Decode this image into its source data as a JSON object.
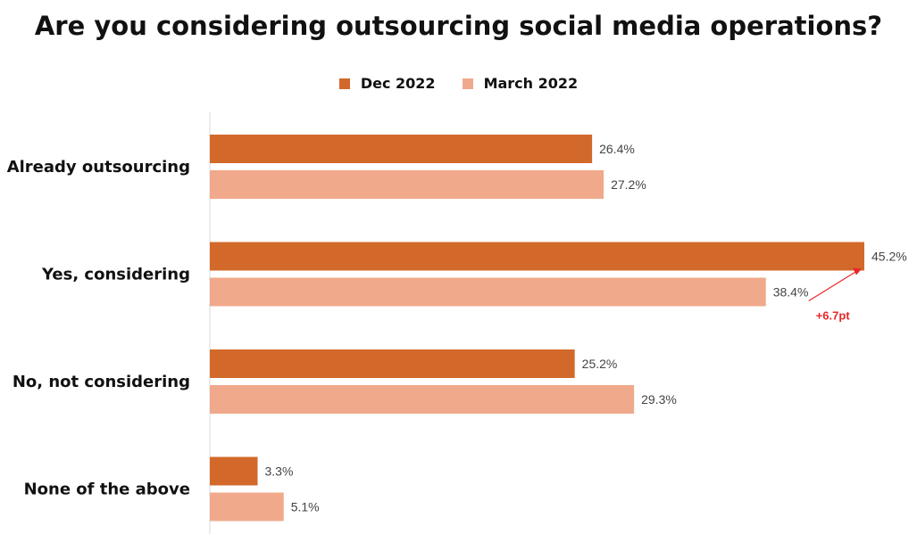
{
  "chart_data": {
    "type": "bar",
    "orientation": "horizontal",
    "title": "Are you considering outsourcing social media operations?",
    "categories": [
      "Already outsourcing",
      "Yes, considering",
      "No, not considering",
      "None of the above"
    ],
    "series": [
      {
        "name": "Dec 2022",
        "values": [
          26.4,
          45.2,
          25.2,
          3.3
        ],
        "labels": [
          "26.4%",
          "45.2%",
          "25.2%",
          "3.3%"
        ],
        "color": "#d2692a"
      },
      {
        "name": "March 2022",
        "values": [
          27.2,
          38.4,
          29.3,
          5.1
        ],
        "labels": [
          "27.2%",
          "38.4%",
          "29.3%",
          "5.1%"
        ],
        "color": "#f0a98a"
      }
    ],
    "xlim": [
      0,
      45.2
    ],
    "grid": false,
    "legend_position": "top",
    "annotation": {
      "text": "+6.7pt",
      "color": "#e8262a"
    }
  }
}
